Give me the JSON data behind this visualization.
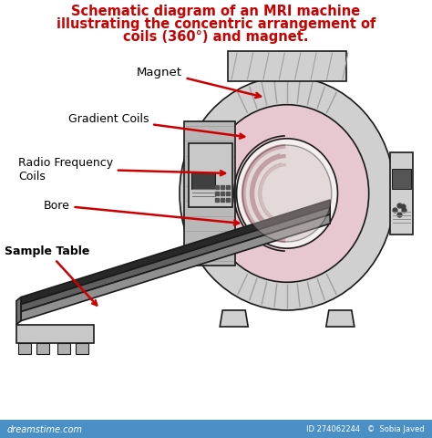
{
  "title_line1": "Schematic diagram of an MRI machine",
  "title_line2": "illustrating the concentric arrangement of",
  "title_line3": "coils (360°) and magnet.",
  "title_color": "#cc0000",
  "title_fontsize": 10.5,
  "bg_color": "#ffffff",
  "label_magnet": "Magnet",
  "label_gradient": "Gradient Coils",
  "label_rf": "Radio Frequency\nCoils",
  "label_bore": "Bore",
  "label_table": "Sample Table",
  "arrow_color": "#cc0000",
  "label_color": "#000000",
  "label_fontsize": 9,
  "footer_bg": "#4a90c4",
  "footer_text1": "dreamstime.com",
  "footer_text2": "ID 274062244   ©  Sobia Javed",
  "col_outer_gray": "#d0d0d0",
  "col_mid_pink": "#e8c8d0",
  "col_inner_white": "#f5f0f0",
  "col_bore_inner": "#e0d8d8",
  "col_dark": "#303030",
  "col_med_gray": "#808080",
  "col_light_gray": "#c8c8c8",
  "col_stripe": "#a0a0a0",
  "col_table_top": "#282828",
  "col_table_side": "#585858",
  "col_body_gray": "#b8b8b8"
}
